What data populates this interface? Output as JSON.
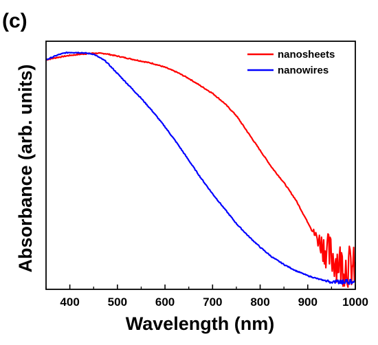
{
  "panel_label": "(c)",
  "chart_data": {
    "type": "line",
    "title": "",
    "xlabel": "Wavelength (nm)",
    "ylabel": "Absorbance (arb. units)",
    "xlim": [
      350,
      1000
    ],
    "ylim": [
      0,
      1
    ],
    "xticks": [
      400,
      500,
      600,
      700,
      800,
      900,
      1000
    ],
    "xtick_labels": [
      "400",
      "500",
      "600",
      "700",
      "800",
      "900",
      "1000"
    ],
    "yticks_labels_shown": false,
    "grid": false,
    "legend_position": "top-right",
    "series": [
      {
        "name": "nanosheets",
        "color": "#ff0000",
        "x": [
          350,
          375,
          400,
          425,
          450,
          475,
          500,
          525,
          550,
          575,
          600,
          625,
          650,
          675,
          700,
          725,
          750,
          775,
          800,
          825,
          850,
          875,
          900,
          915,
          930,
          945,
          960,
          975,
          990,
          1000
        ],
        "y": [
          0.925,
          0.935,
          0.943,
          0.948,
          0.952,
          0.95,
          0.94,
          0.93,
          0.92,
          0.91,
          0.895,
          0.875,
          0.85,
          0.82,
          0.79,
          0.75,
          0.7,
          0.63,
          0.56,
          0.49,
          0.43,
          0.36,
          0.27,
          0.22,
          0.18,
          0.14,
          0.12,
          0.1,
          0.09,
          0.08
        ],
        "noise_from_x": 905
      },
      {
        "name": "nanowires",
        "color": "#0000ff",
        "x": [
          350,
          375,
          390,
          400,
          425,
          450,
          475,
          500,
          525,
          550,
          575,
          600,
          625,
          650,
          675,
          700,
          725,
          750,
          775,
          800,
          825,
          850,
          875,
          900,
          925,
          950,
          975,
          1000
        ],
        "y": [
          0.925,
          0.945,
          0.953,
          0.955,
          0.954,
          0.948,
          0.92,
          0.87,
          0.82,
          0.77,
          0.715,
          0.655,
          0.59,
          0.52,
          0.45,
          0.385,
          0.325,
          0.265,
          0.215,
          0.17,
          0.13,
          0.1,
          0.075,
          0.055,
          0.04,
          0.03,
          0.03,
          0.035
        ],
        "noise_from_x": 930
      }
    ]
  }
}
